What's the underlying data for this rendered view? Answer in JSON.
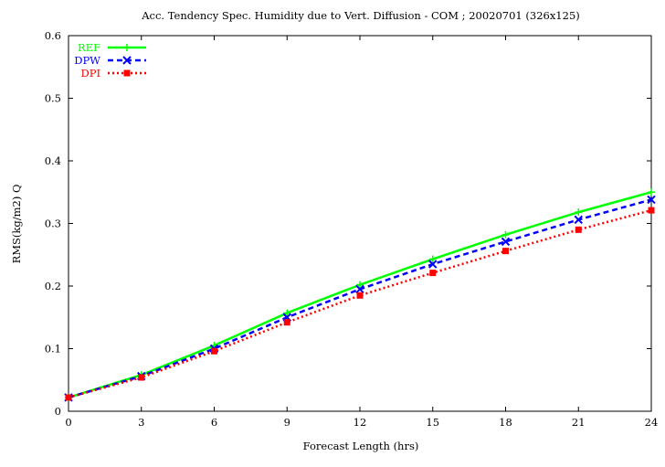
{
  "chart_data": {
    "type": "line",
    "title": "Acc. Tendency Spec. Humidity due to Vert. Diffusion - COM ; 20020701 (326x125)",
    "xlabel": "Forecast Length (hrs)",
    "ylabel": "RMS(kg/m2) Q",
    "x": [
      0,
      3,
      6,
      9,
      12,
      15,
      18,
      21,
      24
    ],
    "xlim": [
      0,
      24
    ],
    "ylim": [
      0,
      0.6
    ],
    "xticks": [
      "0",
      "3",
      "6",
      "9",
      "12",
      "15",
      "18",
      "21",
      "24"
    ],
    "yticks": [
      "0",
      "0.1",
      "0.2",
      "0.3",
      "0.4",
      "0.5",
      "0.6"
    ],
    "grid": false,
    "legend_position": "top-left",
    "series": [
      {
        "name": "REF",
        "color": "#00ff00",
        "dash": "solid",
        "marker": "plus",
        "values": [
          0.022,
          0.058,
          0.105,
          0.157,
          0.202,
          0.243,
          0.282,
          0.318,
          0.35
        ]
      },
      {
        "name": "DPW",
        "color": "#0000ff",
        "dash": "dashed",
        "marker": "cross",
        "values": [
          0.022,
          0.056,
          0.1,
          0.15,
          0.195,
          0.235,
          0.271,
          0.306,
          0.338
        ]
      },
      {
        "name": "DPI",
        "color": "#ff0000",
        "dash": "dotted",
        "marker": "square",
        "values": [
          0.022,
          0.054,
          0.096,
          0.142,
          0.185,
          0.221,
          0.256,
          0.29,
          0.321
        ]
      }
    ]
  }
}
